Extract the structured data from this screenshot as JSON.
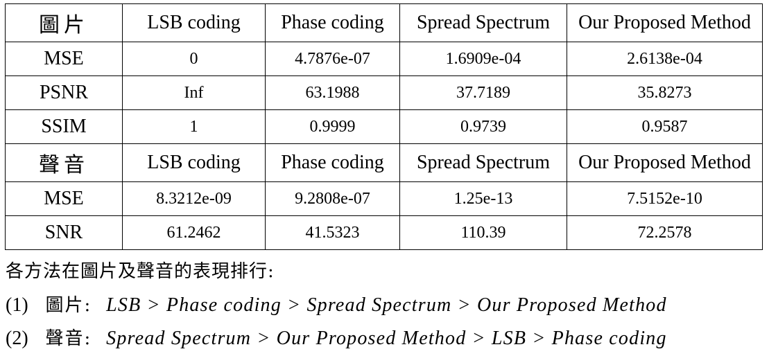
{
  "image_section": {
    "label": "圖片",
    "headers": [
      "LSB coding",
      "Phase coding",
      "Spread Spectrum",
      "Our Proposed Method"
    ],
    "rows": [
      {
        "metric": "MSE",
        "values": [
          "0",
          "4.7876e-07",
          "1.6909e-04",
          "2.6138e-04"
        ]
      },
      {
        "metric": "PSNR",
        "values": [
          "Inf",
          "63.1988",
          "37.7189",
          "35.8273"
        ]
      },
      {
        "metric": "SSIM",
        "values": [
          "1",
          "0.9999",
          "0.9739",
          "0.9587"
        ]
      }
    ]
  },
  "audio_section": {
    "label": "聲音",
    "headers": [
      "LSB coding",
      "Phase coding",
      "Spread Spectrum",
      "Our Proposed Method"
    ],
    "rows": [
      {
        "metric": "MSE",
        "values": [
          "8.3212e-09",
          "9.2808e-07",
          "1.25e-13",
          "7.5152e-10"
        ]
      },
      {
        "metric": "SNR",
        "values": [
          "61.2462",
          "41.5323",
          "110.39",
          "72.2578"
        ]
      }
    ]
  },
  "notes": {
    "title": "各方法在圖片及聲音的表現排行:",
    "items": [
      {
        "number": "(1)",
        "label": "圖片:",
        "ranking": "LSB > Phase coding > Spread Spectrum > Our Proposed Method"
      },
      {
        "number": "(2)",
        "label": "聲音:",
        "ranking": "Spread Spectrum > Our Proposed Method > LSB > Phase coding"
      }
    ]
  }
}
